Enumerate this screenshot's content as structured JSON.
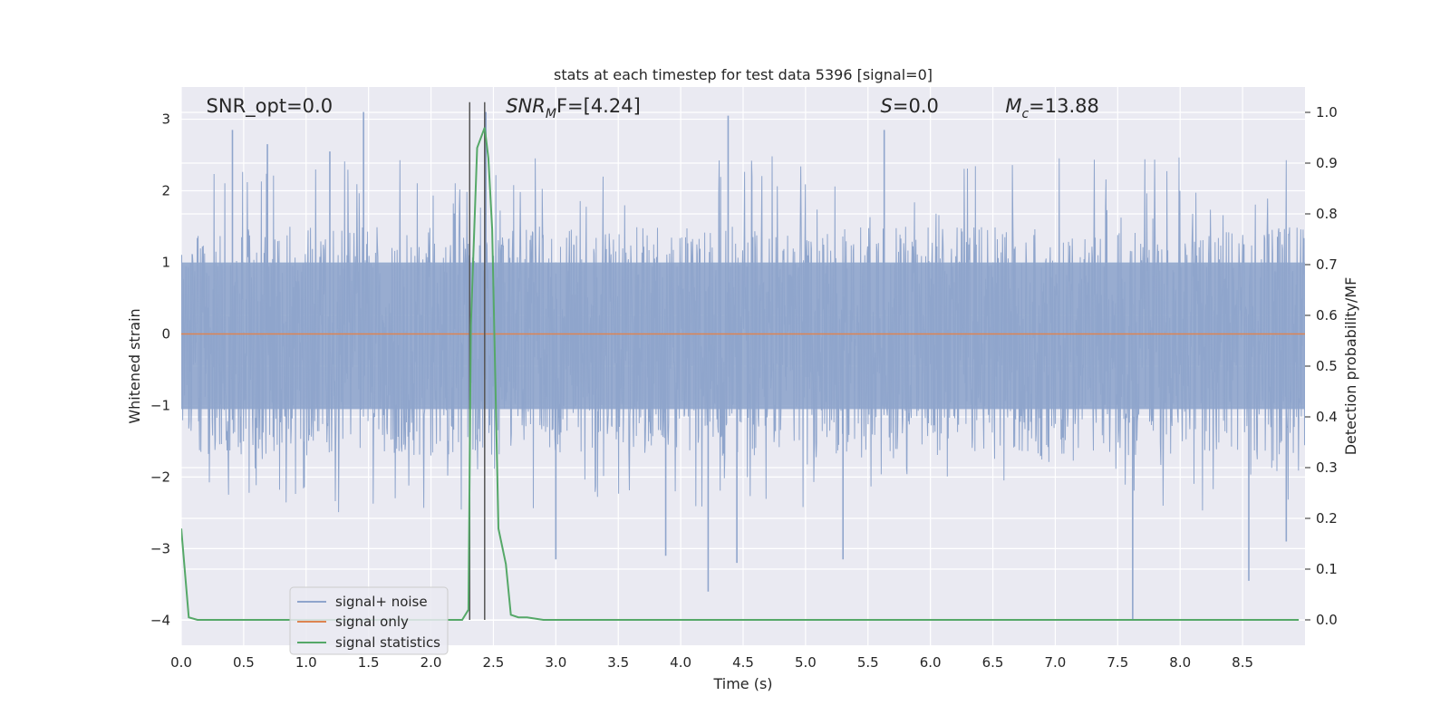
{
  "chart_data": {
    "type": "line",
    "title": "stats at each timestep for test data 5396 [signal=0]",
    "xlabel": "Time (s)",
    "ylabel": "Whitened strain",
    "y2label": "Detection probability/MF",
    "xlim": [
      0.0,
      9.0
    ],
    "ylim": [
      -4.35,
      3.45
    ],
    "y2lim": [
      -0.05,
      1.05
    ],
    "xticks": [
      "0.0",
      "0.5",
      "1.0",
      "1.5",
      "2.0",
      "2.5",
      "3.0",
      "3.5",
      "4.0",
      "4.5",
      "5.0",
      "5.5",
      "6.0",
      "6.5",
      "7.0",
      "7.5",
      "8.0",
      "8.5"
    ],
    "yticks": [
      "3",
      "2",
      "1",
      "0",
      "−1",
      "−2",
      "−3",
      "−4"
    ],
    "y2ticks": [
      "1.0",
      "0.9",
      "0.8",
      "0.7",
      "0.6",
      "0.5",
      "0.4",
      "0.3",
      "0.2",
      "0.1",
      "0.0"
    ],
    "grid": true,
    "legend_position": "lower-left",
    "annotations": [
      {
        "main": "SNR_opt=0.0",
        "x": 0.2
      },
      {
        "main": "SNR",
        "sub": "M",
        "tail": "F=[4.24]",
        "italic": true,
        "x": 2.6
      },
      {
        "main": "S",
        "tail": "=0.0",
        "italic": true,
        "x": 5.6
      },
      {
        "main": "M",
        "sub": "c",
        "tail": "=13.88",
        "italic": true,
        "x": 6.6
      }
    ],
    "vlines": [
      2.31,
      2.43
    ],
    "series": [
      {
        "name": "signal+ noise",
        "color": "#8fa5cc",
        "kind": "noise",
        "approx_band": [
          -1.7,
          1.5
        ],
        "spikes": [
          {
            "x": 0.41,
            "y": 2.85
          },
          {
            "x": 0.69,
            "y": 2.65
          },
          {
            "x": 1.19,
            "y": 2.55
          },
          {
            "x": 1.46,
            "y": 3.1
          },
          {
            "x": 2.44,
            "y": 3.1
          },
          {
            "x": 4.38,
            "y": 3.05
          },
          {
            "x": 5.63,
            "y": 2.85
          },
          {
            "x": 3.0,
            "y": -3.15
          },
          {
            "x": 3.88,
            "y": -3.1
          },
          {
            "x": 4.22,
            "y": -3.6
          },
          {
            "x": 4.45,
            "y": -3.2
          },
          {
            "x": 5.3,
            "y": -3.15
          },
          {
            "x": 7.62,
            "y": -4.0
          },
          {
            "x": 8.55,
            "y": -3.45
          },
          {
            "x": 8.85,
            "y": -2.9
          }
        ]
      },
      {
        "name": "signal only",
        "color": "#dd8452",
        "axis": "left",
        "x": [
          0.0,
          9.0
        ],
        "y": [
          0.0,
          0.0
        ]
      },
      {
        "name": "signal statistics",
        "color": "#55a868",
        "axis": "right",
        "x": [
          0.0,
          0.06,
          0.13,
          0.2,
          0.5,
          1.0,
          1.5,
          2.0,
          2.25,
          2.3,
          2.32,
          2.37,
          2.43,
          2.46,
          2.49,
          2.54,
          2.6,
          2.64,
          2.7,
          2.77,
          2.9,
          3.0,
          4.0,
          5.0,
          6.0,
          7.0,
          8.0,
          8.95
        ],
        "y": [
          0.18,
          0.005,
          0.0,
          0.0,
          0.0,
          0.0,
          0.0,
          0.0,
          0.0,
          0.02,
          0.58,
          0.93,
          0.97,
          0.91,
          0.77,
          0.18,
          0.11,
          0.01,
          0.005,
          0.005,
          0.0,
          0.0,
          0.0,
          0.0,
          0.0,
          0.0,
          0.0,
          0.0
        ]
      }
    ]
  }
}
